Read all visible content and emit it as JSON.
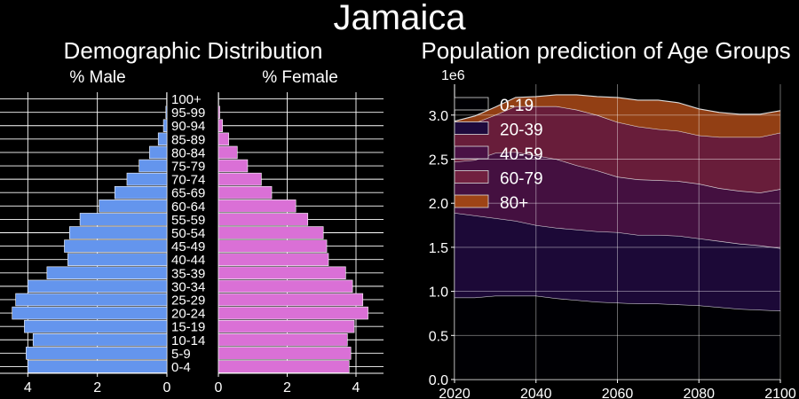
{
  "figure": {
    "title": "Jamaica"
  },
  "chart_data": [
    {
      "type": "bar",
      "orientation": "horizontal",
      "title": "Demographic Distribution",
      "left_panel_title": "% Male",
      "right_panel_title": "% Female",
      "categories": [
        "0-4",
        "5-9",
        "10-14",
        "15-19",
        "20-24",
        "25-29",
        "30-34",
        "35-39",
        "40-44",
        "45-49",
        "50-54",
        "55-59",
        "60-64",
        "65-69",
        "70-74",
        "75-79",
        "80-84",
        "85-89",
        "90-94",
        "95-99",
        "100+"
      ],
      "series": [
        {
          "name": "% Male",
          "color": "#6495ed",
          "values": [
            4.0,
            4.05,
            3.85,
            4.1,
            4.45,
            4.35,
            4.0,
            3.45,
            2.85,
            2.95,
            2.8,
            2.5,
            1.95,
            1.5,
            1.15,
            0.8,
            0.5,
            0.25,
            0.1,
            0.03,
            0.01
          ]
        },
        {
          "name": "% Female",
          "color": "#da70d6",
          "values": [
            3.8,
            3.85,
            3.75,
            3.95,
            4.35,
            4.2,
            3.9,
            3.7,
            3.2,
            3.15,
            3.05,
            2.6,
            2.25,
            1.55,
            1.25,
            0.85,
            0.55,
            0.3,
            0.12,
            0.04,
            0.01
          ]
        }
      ],
      "xlim_left": [
        4.8,
        0
      ],
      "xlim_right": [
        0,
        4.8
      ],
      "xticks_left": [
        4,
        2,
        0
      ],
      "xticks_right": [
        0,
        2,
        4
      ],
      "grid": true
    },
    {
      "type": "area",
      "stacked": true,
      "title": "Population prediction of Age Groups",
      "scale_label": "1e6",
      "x": [
        2020,
        2025,
        2030,
        2035,
        2040,
        2045,
        2050,
        2055,
        2060,
        2065,
        2070,
        2075,
        2080,
        2085,
        2090,
        2095,
        2100
      ],
      "xlim": [
        2020,
        2100
      ],
      "ylim": [
        0,
        3.35
      ],
      "xticks": [
        2020,
        2040,
        2060,
        2080,
        2100
      ],
      "yticks": [
        0.0,
        0.5,
        1.0,
        1.5,
        2.0,
        2.5,
        3.0
      ],
      "ytick_labels": [
        "0.0",
        "0.5",
        "1.0",
        "1.5",
        "2.0",
        "2.5",
        "3.0"
      ],
      "legend_position": "top-left",
      "grid": true,
      "series": [
        {
          "name": "0-19",
          "color": "#000004",
          "values": [
            0.93,
            0.93,
            0.95,
            0.95,
            0.95,
            0.92,
            0.9,
            0.88,
            0.87,
            0.86,
            0.86,
            0.85,
            0.84,
            0.82,
            0.8,
            0.79,
            0.78
          ]
        },
        {
          "name": "20-39",
          "color": "#1e0a3c",
          "values": [
            0.96,
            0.93,
            0.88,
            0.85,
            0.8,
            0.8,
            0.8,
            0.8,
            0.8,
            0.78,
            0.78,
            0.78,
            0.76,
            0.75,
            0.74,
            0.73,
            0.71
          ]
        },
        {
          "name": "40-59",
          "color": "#4a1145",
          "values": [
            0.58,
            0.63,
            0.74,
            0.78,
            0.79,
            0.78,
            0.73,
            0.69,
            0.63,
            0.63,
            0.62,
            0.62,
            0.62,
            0.6,
            0.6,
            0.6,
            0.67
          ]
        },
        {
          "name": "60-79",
          "color": "#71203f",
          "values": [
            0.39,
            0.42,
            0.43,
            0.52,
            0.56,
            0.6,
            0.63,
            0.63,
            0.62,
            0.6,
            0.58,
            0.57,
            0.55,
            0.58,
            0.61,
            0.63,
            0.64
          ]
        },
        {
          "name": "80+",
          "color": "#9e4416",
          "values": [
            0.07,
            0.08,
            0.09,
            0.1,
            0.11,
            0.13,
            0.17,
            0.21,
            0.28,
            0.3,
            0.33,
            0.32,
            0.3,
            0.28,
            0.26,
            0.26,
            0.25
          ]
        }
      ]
    }
  ]
}
